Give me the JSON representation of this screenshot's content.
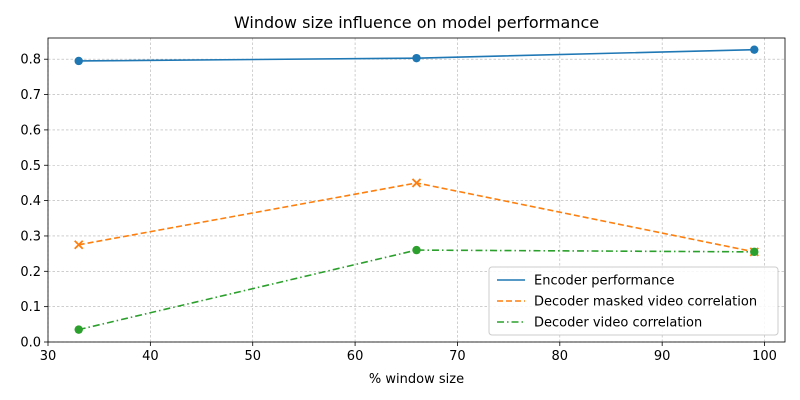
{
  "chart_data": {
    "type": "line",
    "title": "Window size influence on model performance",
    "xlabel": "% window size",
    "ylabel": "",
    "x": [
      33,
      66,
      99
    ],
    "xlim": [
      30,
      102
    ],
    "ylim": [
      0,
      0.86
    ],
    "xticks": [
      30,
      40,
      50,
      60,
      70,
      80,
      90,
      100
    ],
    "yticks": [
      0.0,
      0.1,
      0.2,
      0.3,
      0.4,
      0.5,
      0.6,
      0.7,
      0.8
    ],
    "grid": true,
    "legend_position": "lower-right",
    "series": [
      {
        "name": "Encoder performance",
        "values": [
          0.795,
          0.803,
          0.827
        ],
        "color": "#1f77b4",
        "line": "solid",
        "marker": "circle"
      },
      {
        "name": "Decoder masked video correlation",
        "values": [
          0.275,
          0.45,
          0.255
        ],
        "color": "#ff7f0e",
        "line": "dashed",
        "marker": "x"
      },
      {
        "name": "Decoder video correlation",
        "values": [
          0.035,
          0.26,
          0.255
        ],
        "color": "#2ca02c",
        "line": "dashdot",
        "marker": "circle"
      }
    ]
  }
}
